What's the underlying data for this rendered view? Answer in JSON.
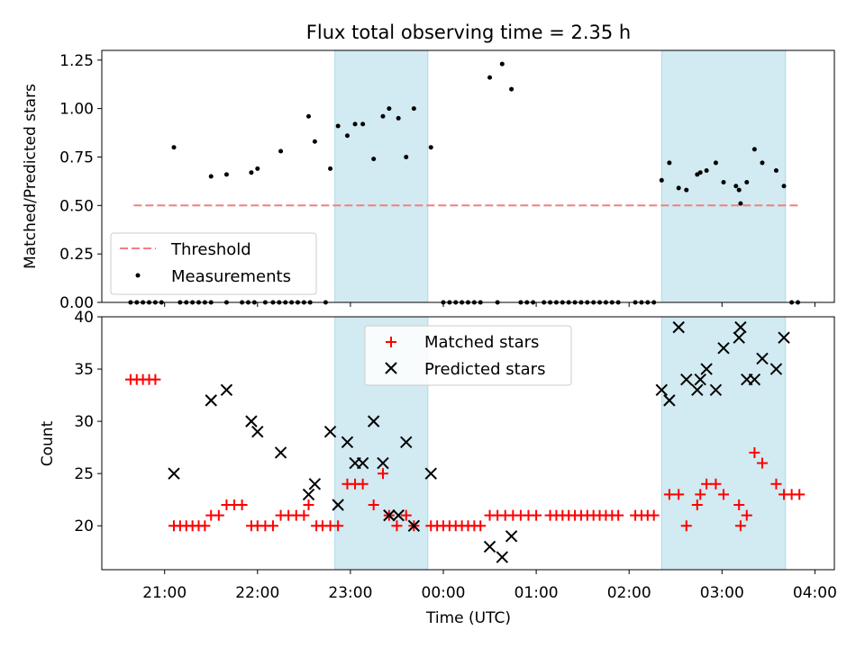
{
  "chart_data": {
    "title": "Flux total observing time = 2.35 h",
    "xlabel": "Time (UTC)",
    "x_ticks": [
      "21:00",
      "22:00",
      "23:00",
      "00:00",
      "01:00",
      "02:00",
      "03:00",
      "04:00"
    ],
    "shaded_intervals": [
      [
        "22:50",
        "23:50"
      ],
      [
        "02:21",
        "03:41"
      ]
    ],
    "colors": {
      "matched": "#ff0000",
      "predicted": "#000000",
      "threshold": "#f08080",
      "shade": "#add8e6",
      "measurement": "#000000"
    },
    "panels": [
      {
        "type": "scatter",
        "ylabel": "Matched/Predicted stars",
        "ylim": [
          0,
          1.3
        ],
        "yticks": [
          "0.00",
          "0.25",
          "0.50",
          "0.75",
          "1.00",
          "1.25"
        ],
        "legend_position": "lower-left",
        "legend": [
          "Threshold",
          "Measurements"
        ],
        "threshold": {
          "name": "Threshold",
          "y": 0.5,
          "x_range": [
            "20:40",
            "03:50"
          ]
        },
        "series": [
          {
            "name": "Measurements",
            "marker": "dot",
            "points": [
              [
                "20:38",
                0
              ],
              [
                "20:42",
                0
              ],
              [
                "20:46",
                0
              ],
              [
                "20:50",
                0
              ],
              [
                "20:54",
                0
              ],
              [
                "20:58",
                0
              ],
              [
                "21:06",
                0.8
              ],
              [
                "21:10",
                0
              ],
              [
                "21:14",
                0
              ],
              [
                "21:18",
                0
              ],
              [
                "21:22",
                0
              ],
              [
                "21:26",
                0
              ],
              [
                "21:30",
                0
              ],
              [
                "21:40",
                0
              ],
              [
                "21:50",
                0
              ],
              [
                "21:54",
                0
              ],
              [
                "21:58",
                0
              ],
              [
                "21:30",
                0.65
              ],
              [
                "21:40",
                0.66
              ],
              [
                "21:56",
                0.67
              ],
              [
                "22:00",
                0.69
              ],
              [
                "22:05",
                0
              ],
              [
                "22:10",
                0
              ],
              [
                "22:14",
                0
              ],
              [
                "22:18",
                0
              ],
              [
                "22:22",
                0
              ],
              [
                "22:26",
                0
              ],
              [
                "22:30",
                0
              ],
              [
                "22:34",
                0
              ],
              [
                "22:15",
                0.78
              ],
              [
                "22:33",
                0.96
              ],
              [
                "22:37",
                0.83
              ],
              [
                "22:44",
                0
              ],
              [
                "22:47",
                0.69
              ],
              [
                "22:52",
                0.91
              ],
              [
                "22:58",
                0.86
              ],
              [
                "23:03",
                0.92
              ],
              [
                "23:08",
                0.92
              ],
              [
                "23:15",
                0.74
              ],
              [
                "23:21",
                0.96
              ],
              [
                "23:25",
                1.0
              ],
              [
                "23:31",
                0.95
              ],
              [
                "23:36",
                0.75
              ],
              [
                "23:41",
                1.0
              ],
              [
                "23:52",
                0.8
              ],
              [
                "00:00",
                0
              ],
              [
                "00:04",
                0
              ],
              [
                "00:08",
                0
              ],
              [
                "00:12",
                0
              ],
              [
                "00:16",
                0
              ],
              [
                "00:20",
                0
              ],
              [
                "00:24",
                0
              ],
              [
                "00:30",
                1.16
              ],
              [
                "00:35",
                0
              ],
              [
                "00:38",
                1.23
              ],
              [
                "00:44",
                1.1
              ],
              [
                "00:50",
                0
              ],
              [
                "00:54",
                0
              ],
              [
                "00:58",
                0
              ],
              [
                "01:05",
                0
              ],
              [
                "01:09",
                0
              ],
              [
                "01:13",
                0
              ],
              [
                "01:17",
                0
              ],
              [
                "01:21",
                0
              ],
              [
                "01:25",
                0
              ],
              [
                "01:29",
                0
              ],
              [
                "01:33",
                0
              ],
              [
                "01:37",
                0
              ],
              [
                "01:41",
                0
              ],
              [
                "01:45",
                0
              ],
              [
                "01:49",
                0
              ],
              [
                "01:53",
                0
              ],
              [
                "02:04",
                0
              ],
              [
                "02:08",
                0
              ],
              [
                "02:12",
                0
              ],
              [
                "02:16",
                0
              ],
              [
                "02:21",
                0.63
              ],
              [
                "02:26",
                0.72
              ],
              [
                "02:32",
                0.59
              ],
              [
                "02:37",
                0.58
              ],
              [
                "02:44",
                0.66
              ],
              [
                "02:46",
                0.67
              ],
              [
                "02:50",
                0.68
              ],
              [
                "02:56",
                0.72
              ],
              [
                "03:01",
                0.62
              ],
              [
                "03:09",
                0.6
              ],
              [
                "03:11",
                0.58
              ],
              [
                "03:12",
                0.51
              ],
              [
                "03:16",
                0.62
              ],
              [
                "03:21",
                0.79
              ],
              [
                "03:26",
                0.72
              ],
              [
                "03:35",
                0.68
              ],
              [
                "03:40",
                0.6
              ],
              [
                "03:45",
                0
              ],
              [
                "03:49",
                0
              ]
            ]
          }
        ]
      },
      {
        "type": "scatter",
        "ylabel": "Count",
        "ylim": [
          15.8,
          40
        ],
        "yticks": [
          "20",
          "25",
          "30",
          "35",
          "40"
        ],
        "legend_position": "upper-center",
        "legend": [
          "Matched stars",
          "Predicted stars"
        ],
        "series": [
          {
            "name": "Matched stars",
            "marker": "plus",
            "points": [
              [
                "20:38",
                34
              ],
              [
                "20:42",
                34
              ],
              [
                "20:46",
                34
              ],
              [
                "20:50",
                34
              ],
              [
                "20:54",
                34
              ],
              [
                "21:06",
                20
              ],
              [
                "21:10",
                20
              ],
              [
                "21:14",
                20
              ],
              [
                "21:18",
                20
              ],
              [
                "21:22",
                20
              ],
              [
                "21:26",
                20
              ],
              [
                "21:30",
                21
              ],
              [
                "21:35",
                21
              ],
              [
                "21:40",
                22
              ],
              [
                "21:45",
                22
              ],
              [
                "21:50",
                22
              ],
              [
                "21:56",
                20
              ],
              [
                "22:00",
                20
              ],
              [
                "22:05",
                20
              ],
              [
                "22:10",
                20
              ],
              [
                "22:15",
                21
              ],
              [
                "22:20",
                21
              ],
              [
                "22:25",
                21
              ],
              [
                "22:30",
                21
              ],
              [
                "22:33",
                22
              ],
              [
                "22:38",
                20
              ],
              [
                "22:42",
                20
              ],
              [
                "22:47",
                20
              ],
              [
                "22:52",
                20
              ],
              [
                "22:58",
                24
              ],
              [
                "23:03",
                24
              ],
              [
                "23:08",
                24
              ],
              [
                "23:15",
                22
              ],
              [
                "23:21",
                25
              ],
              [
                "23:25",
                21
              ],
              [
                "23:30",
                20
              ],
              [
                "23:36",
                21
              ],
              [
                "23:41",
                20
              ],
              [
                "23:52",
                20
              ],
              [
                "23:56",
                20
              ],
              [
                "00:00",
                20
              ],
              [
                "00:04",
                20
              ],
              [
                "00:08",
                20
              ],
              [
                "00:12",
                20
              ],
              [
                "00:16",
                20
              ],
              [
                "00:20",
                20
              ],
              [
                "00:24",
                20
              ],
              [
                "00:30",
                21
              ],
              [
                "00:35",
                21
              ],
              [
                "00:40",
                21
              ],
              [
                "00:45",
                21
              ],
              [
                "00:50",
                21
              ],
              [
                "00:55",
                21
              ],
              [
                "01:00",
                21
              ],
              [
                "01:09",
                21
              ],
              [
                "01:13",
                21
              ],
              [
                "01:17",
                21
              ],
              [
                "01:21",
                21
              ],
              [
                "01:25",
                21
              ],
              [
                "01:29",
                21
              ],
              [
                "01:33",
                21
              ],
              [
                "01:37",
                21
              ],
              [
                "01:41",
                21
              ],
              [
                "01:45",
                21
              ],
              [
                "01:49",
                21
              ],
              [
                "01:53",
                21
              ],
              [
                "02:04",
                21
              ],
              [
                "02:08",
                21
              ],
              [
                "02:12",
                21
              ],
              [
                "02:16",
                21
              ],
              [
                "02:26",
                23
              ],
              [
                "02:32",
                23
              ],
              [
                "02:37",
                20
              ],
              [
                "02:44",
                22
              ],
              [
                "02:46",
                23
              ],
              [
                "02:50",
                24
              ],
              [
                "02:56",
                24
              ],
              [
                "03:01",
                23
              ],
              [
                "03:11",
                22
              ],
              [
                "03:12",
                20
              ],
              [
                "03:16",
                21
              ],
              [
                "03:21",
                27
              ],
              [
                "03:26",
                26
              ],
              [
                "03:35",
                24
              ],
              [
                "03:40",
                23
              ],
              [
                "03:45",
                23
              ],
              [
                "03:50",
                23
              ]
            ]
          },
          {
            "name": "Predicted stars",
            "marker": "x",
            "points": [
              [
                "21:06",
                25
              ],
              [
                "21:30",
                32
              ],
              [
                "21:40",
                33
              ],
              [
                "21:56",
                30
              ],
              [
                "22:00",
                29
              ],
              [
                "22:15",
                27
              ],
              [
                "22:33",
                23
              ],
              [
                "22:37",
                24
              ],
              [
                "22:47",
                29
              ],
              [
                "22:52",
                22
              ],
              [
                "22:58",
                28
              ],
              [
                "23:03",
                26
              ],
              [
                "23:08",
                26
              ],
              [
                "23:15",
                30
              ],
              [
                "23:21",
                26
              ],
              [
                "23:25",
                21
              ],
              [
                "23:31",
                21
              ],
              [
                "23:36",
                28
              ],
              [
                "23:41",
                20
              ],
              [
                "23:52",
                25
              ],
              [
                "00:30",
                18
              ],
              [
                "00:38",
                17
              ],
              [
                "00:44",
                19
              ],
              [
                "02:21",
                33
              ],
              [
                "02:26",
                32
              ],
              [
                "02:32",
                39
              ],
              [
                "02:37",
                34
              ],
              [
                "02:44",
                33
              ],
              [
                "02:46",
                34
              ],
              [
                "02:50",
                35
              ],
              [
                "02:56",
                33
              ],
              [
                "03:01",
                37
              ],
              [
                "03:11",
                38
              ],
              [
                "03:12",
                39
              ],
              [
                "03:16",
                34
              ],
              [
                "03:21",
                34
              ],
              [
                "03:26",
                36
              ],
              [
                "03:35",
                35
              ],
              [
                "03:40",
                38
              ]
            ]
          }
        ]
      }
    ]
  }
}
